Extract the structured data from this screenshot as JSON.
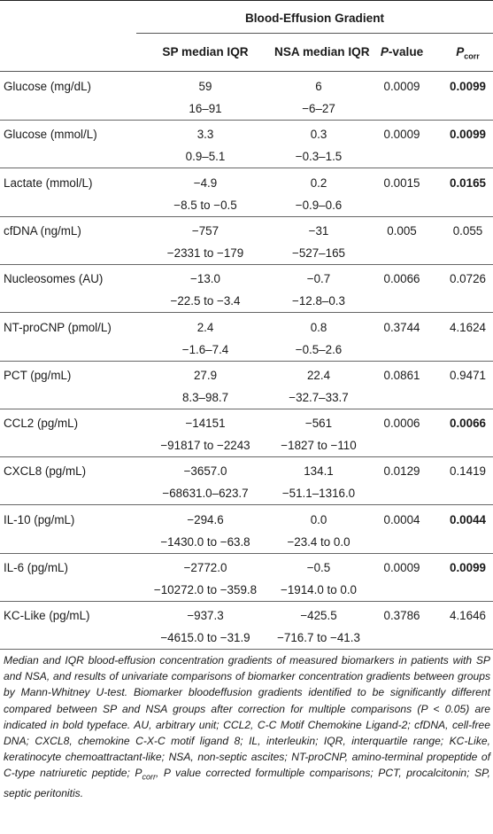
{
  "header": {
    "group_title": "Blood-Effusion Gradient",
    "col_sp": "SP median IQR",
    "col_nsa": "NSA median IQR",
    "col_p_italic": "P",
    "col_p_rest": "-value",
    "col_pcorr_main": "P",
    "col_pcorr_sub": "corr"
  },
  "rows": [
    {
      "name": "Glucose (mg/dL)",
      "sp_median": "59",
      "sp_iqr": "16–91",
      "nsa_median": "6",
      "nsa_iqr": "−6–27",
      "p": "0.0009",
      "pcorr": "0.0099",
      "bold": true
    },
    {
      "name": "Glucose (mmol/L)",
      "sp_median": "3.3",
      "sp_iqr": "0.9–5.1",
      "nsa_median": "0.3",
      "nsa_iqr": "−0.3–1.5",
      "p": "0.0009",
      "pcorr": "0.0099",
      "bold": true
    },
    {
      "name": "Lactate (mmol/L)",
      "sp_median": "−4.9",
      "sp_iqr": "−8.5 to −0.5",
      "nsa_median": "0.2",
      "nsa_iqr": "−0.9–0.6",
      "p": "0.0015",
      "pcorr": "0.0165",
      "bold": true
    },
    {
      "name": "cfDNA (ng/mL)",
      "sp_median": "−757",
      "sp_iqr": "−2331 to −179",
      "nsa_median": "−31",
      "nsa_iqr": "−527–165",
      "p": "0.005",
      "pcorr": "0.055",
      "bold": false
    },
    {
      "name": "Nucleosomes (AU)",
      "sp_median": "−13.0",
      "sp_iqr": "−22.5 to −3.4",
      "nsa_median": "−0.7",
      "nsa_iqr": "−12.8–0.3",
      "p": "0.0066",
      "pcorr": "0.0726",
      "bold": false
    },
    {
      "name": "NT-proCNP (pmol/L)",
      "sp_median": "2.4",
      "sp_iqr": "−1.6–7.4",
      "nsa_median": "0.8",
      "nsa_iqr": "−0.5–2.6",
      "p": "0.3744",
      "pcorr": "4.1624",
      "bold": false
    },
    {
      "name": "PCT (pg/mL)",
      "sp_median": "27.9",
      "sp_iqr": "8.3–98.7",
      "nsa_median": "22.4",
      "nsa_iqr": "−32.7–33.7",
      "p": "0.0861",
      "pcorr": "0.9471",
      "bold": false
    },
    {
      "name": "CCL2 (pg/mL)",
      "sp_median": "−14151",
      "sp_iqr": "−91817 to −2243",
      "nsa_median": "−561",
      "nsa_iqr": "−1827 to −110",
      "p": "0.0006",
      "pcorr": "0.0066",
      "bold": true
    },
    {
      "name": "CXCL8 (pg/mL)",
      "sp_median": "−3657.0",
      "sp_iqr": "−68631.0–623.7",
      "nsa_median": "134.1",
      "nsa_iqr": "−51.1–1316.0",
      "p": "0.0129",
      "pcorr": "0.1419",
      "bold": false
    },
    {
      "name": "IL-10 (pg/mL)",
      "sp_median": "−294.6",
      "sp_iqr": "−1430.0 to −63.8",
      "nsa_median": "0.0",
      "nsa_iqr": "−23.4 to 0.0",
      "p": "0.0004",
      "pcorr": "0.0044",
      "bold": true
    },
    {
      "name": "IL-6 (pg/mL)",
      "sp_median": "−2772.0",
      "sp_iqr": "−10272.0 to −359.8",
      "nsa_median": "−0.5",
      "nsa_iqr": "−1914.0 to 0.0",
      "p": "0.0009",
      "pcorr": "0.0099",
      "bold": true
    },
    {
      "name": "KC-Like (pg/mL)",
      "sp_median": "−937.3",
      "sp_iqr": "−4615.0 to −31.9",
      "nsa_median": "−425.5",
      "nsa_iqr": "−716.7 to −41.3",
      "p": "0.3786",
      "pcorr": "4.1646",
      "bold": false
    }
  ],
  "footnote": {
    "part1": "Median and IQR blood-effusion concentration gradients of measured biomarkers in patients with SP and NSA, and results of univariate comparisons of biomarker concentration gradients between groups by Mann-Whitney U-test. Biomarker bloodeffusion gradients identified to be significantly different compared between SP and NSA groups after correction for multiple comparisons (",
    "part1_p": "P",
    "part2": " < 0.05) are indicated in bold typeface. AU, arbitrary unit; CCL2, C-C Motif Chemokine Ligand-2; cfDNA, cell-free DNA; CXCL8, chemokine C-X-C motif ligand 8; IL, interleukin; IQR, interquartile range; KC-Like, keratinocyte chemoattractant-like; NSA, non-septic ascites; NT-proCNP, amino-terminal propeptide of C-type natriuretic peptide; ",
    "part2_p": "P",
    "part2_sub": "corr",
    "part3": ", P value corrected formultiple comparisons; PCT, procalcitonin; SP, septic peritonitis."
  }
}
